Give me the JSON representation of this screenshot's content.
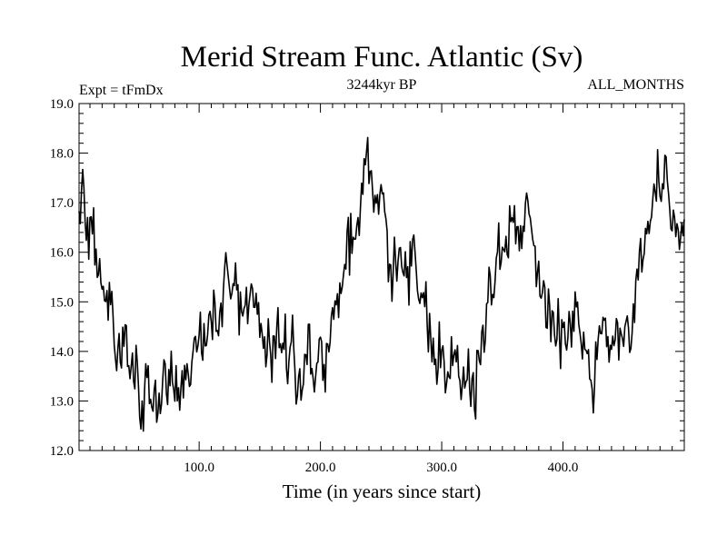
{
  "chart_data": {
    "type": "line",
    "title": "Merid Stream Func. Atlantic (Sv)",
    "subtitle_left": "Expt = tFmDx",
    "subtitle_center": "3244kyr BP",
    "subtitle_right": "ALL_MONTHS",
    "xlabel": "Time (in years since start)",
    "ylabel": "",
    "xlim": [
      1,
      500
    ],
    "ylim": [
      12.0,
      19.0
    ],
    "x_ticks": [
      100,
      200,
      300,
      400
    ],
    "x_tick_labels": [
      "100.0",
      "200.0",
      "300.0",
      "400.0"
    ],
    "y_ticks": [
      12,
      13,
      14,
      15,
      16,
      17,
      18,
      19
    ],
    "y_tick_labels": [
      "12.0",
      "13.0",
      "14.0",
      "15.0",
      "16.0",
      "17.0",
      "18.0",
      "19.0"
    ],
    "grid": false,
    "series": [
      {
        "name": "Merid Stream Func. Atlantic",
        "color": "#000000",
        "anchors_x": [
          1,
          5,
          10,
          20,
          30,
          35,
          45,
          55,
          65,
          75,
          85,
          95,
          105,
          115,
          125,
          135,
          145,
          155,
          165,
          175,
          185,
          195,
          205,
          215,
          225,
          232,
          238,
          245,
          255,
          265,
          275,
          285,
          295,
          305,
          315,
          325,
          335,
          345,
          355,
          365,
          375,
          385,
          395,
          405,
          415,
          425,
          435,
          445,
          455,
          465,
          475,
          480,
          490,
          500
        ],
        "anchors_y": [
          16.5,
          16.8,
          16.3,
          15.3,
          14.8,
          14.1,
          13.8,
          13.2,
          13.0,
          13.6,
          13.4,
          13.9,
          14.4,
          14.9,
          15.3,
          15.1,
          14.8,
          14.5,
          14.2,
          14.0,
          13.8,
          13.7,
          14.1,
          15.2,
          16.2,
          16.7,
          17.6,
          16.9,
          16.3,
          15.7,
          15.6,
          14.9,
          14.3,
          13.8,
          13.4,
          13.3,
          14.3,
          15.8,
          16.6,
          16.8,
          16.2,
          15.2,
          14.6,
          14.7,
          14.3,
          13.8,
          14.2,
          14.5,
          14.6,
          15.9,
          17.1,
          17.3,
          16.5,
          15.9
        ],
        "noise_amplitude_sv": 0.55,
        "samples": 500
      }
    ]
  }
}
